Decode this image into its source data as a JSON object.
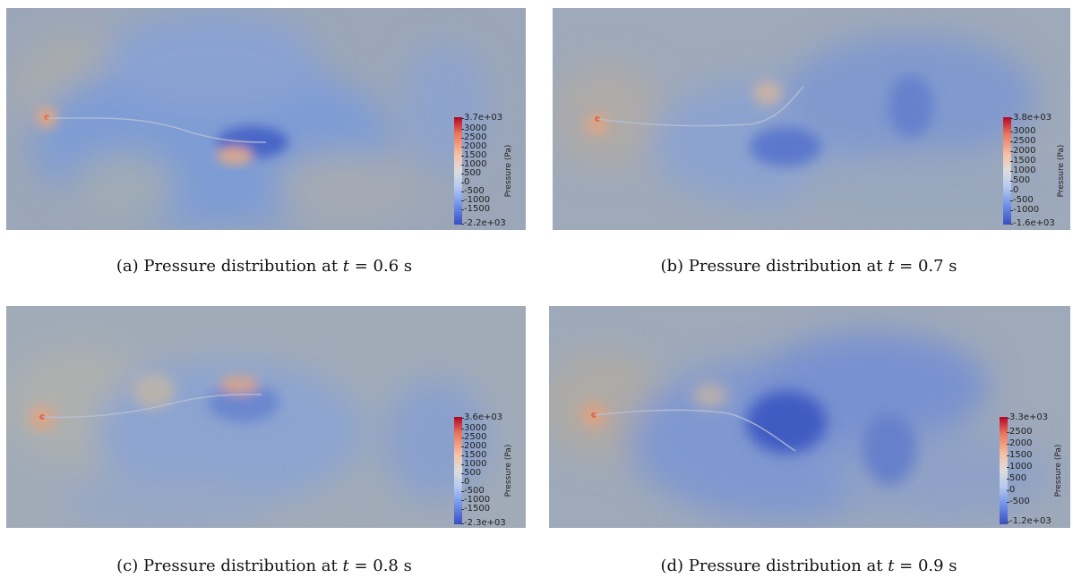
{
  "figures": [
    {
      "id": "a",
      "caption_prefix": "(a)  Pressure distribution at ",
      "caption_var": "t",
      "caption_value": " = 0.6 s",
      "colorbar_title": "Pressure (Pa)",
      "colorbar_labels": [
        "3.7e+03",
        "3000",
        "2500",
        "2000",
        "1500",
        "1000",
        "500",
        "0",
        "-500",
        "-1000",
        "-1500",
        "-2.2e+03"
      ],
      "range": [
        -2200,
        3700
      ]
    },
    {
      "id": "b",
      "caption_prefix": "(b)  Pressure distribution at ",
      "caption_var": "t",
      "caption_value": " = 0.7 s",
      "colorbar_title": "Pressure (Pa)",
      "colorbar_labels": [
        "3.8e+03",
        "3000",
        "2500",
        "2000",
        "1500",
        "1000",
        "500",
        "0",
        "-500",
        "-1000",
        "-1.6e+03"
      ],
      "range": [
        -1600,
        3800
      ]
    },
    {
      "id": "c",
      "caption_prefix": "(c)  Pressure distribution at ",
      "caption_var": "t",
      "caption_value": " = 0.8 s",
      "colorbar_title": "Pressure (Pa)",
      "colorbar_labels": [
        "3.6e+03",
        "3000",
        "2500",
        "2000",
        "1500",
        "1000",
        "500",
        "0",
        "-500",
        "-1000",
        "-1500",
        "-2.3e+03"
      ],
      "range": [
        -2300,
        3600
      ]
    },
    {
      "id": "d",
      "caption_prefix": "(d)  Pressure distribution at ",
      "caption_var": "t",
      "caption_value": " = 0.9 s",
      "colorbar_title": "Pressure (Pa)",
      "colorbar_labels": [
        "3.3e+03",
        "2500",
        "2000",
        "1500",
        "1000",
        "500",
        "0",
        "-500",
        "-1.2e+03"
      ],
      "range": [
        -1200,
        3300
      ]
    }
  ]
}
